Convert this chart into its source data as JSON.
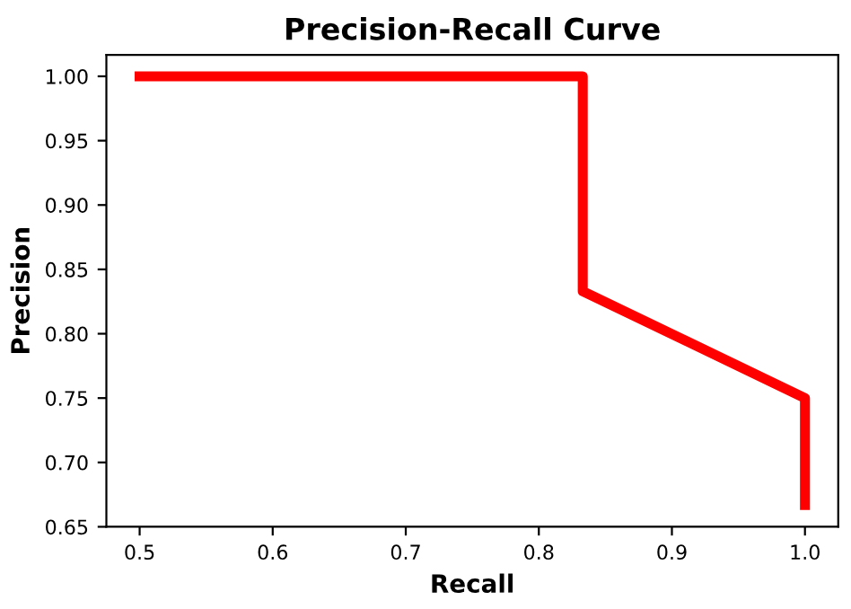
{
  "chart_data": {
    "type": "line",
    "title": "Precision-Recall Curve",
    "xlabel": "Recall",
    "ylabel": "Precision",
    "x": [
      0.5,
      0.833,
      0.833,
      1.0,
      1.0
    ],
    "series": [
      {
        "color": "#ff0000",
        "values": [
          1.0,
          1.0,
          0.833,
          0.75,
          0.667
        ]
      }
    ],
    "xlim": [
      0.475,
      1.025
    ],
    "xticks": [
      0.5,
      0.6,
      0.7,
      0.8,
      0.9,
      {
        "value": 1.0,
        "label": "1.0"
      }
    ],
    "ylim": [
      0.65,
      1.0167
    ],
    "yticks": [
      {
        "value": 0.65,
        "label": "0.65"
      },
      {
        "value": 0.7,
        "label": "0.70"
      },
      {
        "value": 0.75,
        "label": "0.75"
      },
      {
        "value": 0.8,
        "label": "0.80"
      },
      {
        "value": 0.85,
        "label": "0.85"
      },
      {
        "value": 0.9,
        "label": "0.90"
      },
      {
        "value": 0.95,
        "label": "0.95"
      },
      {
        "value": 1.0,
        "label": "1.00"
      }
    ],
    "grid": false,
    "legend": false,
    "marker": "none",
    "line_style": "solid"
  }
}
